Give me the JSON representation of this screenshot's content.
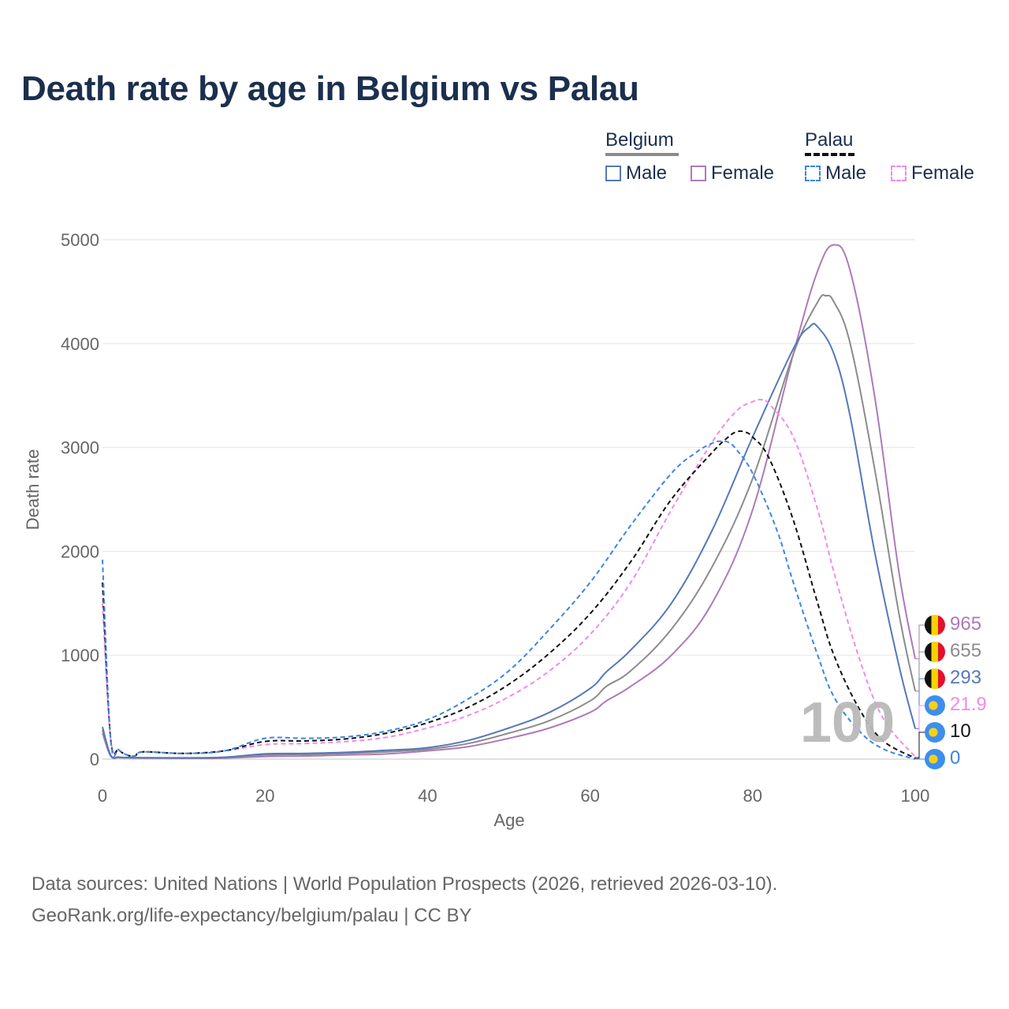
{
  "title": "Death rate by age in Belgium vs Palau",
  "legend": {
    "groups": [
      {
        "name": "Belgium",
        "items": [
          {
            "label": "Male",
            "color": "#5578b8"
          },
          {
            "label": "Female",
            "color": "#ad7ab8"
          }
        ]
      },
      {
        "name": "Palau",
        "items": [
          {
            "label": "Male",
            "color": "#3b86e6"
          },
          {
            "label": "Female",
            "color": "#f18ae8"
          }
        ]
      }
    ]
  },
  "watermark": "100",
  "sources": {
    "line1": "Data sources: United Nations | World Population Prospects (2026, retrieved 2026-03-10).",
    "line2": "GeoRank.org/life-expectancy/belgium/palau | CC BY"
  },
  "chart_data": {
    "type": "line",
    "title": "Death rate by age in Belgium vs Palau",
    "xlabel": "Age",
    "ylabel": "Death rate",
    "xlim": [
      0,
      100
    ],
    "ylim": [
      0,
      5000
    ],
    "xticks": [
      0,
      20,
      40,
      60,
      80,
      100
    ],
    "yticks": [
      0,
      1000,
      2000,
      3000,
      4000,
      5000
    ],
    "grid": true,
    "series": [
      {
        "name": "Belgium Female",
        "country": "Belgium",
        "sex": "Female",
        "color": "#ad7ab8",
        "dash": false,
        "end_label": "965",
        "x": [
          0,
          1,
          2,
          3,
          4,
          5,
          10,
          15,
          20,
          25,
          30,
          35,
          40,
          45,
          50,
          55,
          60,
          62,
          65,
          70,
          75,
          80,
          85,
          88,
          90,
          92,
          95,
          98,
          100
        ],
        "y": [
          250,
          30,
          15,
          12,
          10,
          10,
          8,
          10,
          25,
          30,
          40,
          50,
          80,
          120,
          200,
          300,
          450,
          560,
          700,
          1000,
          1500,
          2400,
          3900,
          4700,
          4950,
          4700,
          3500,
          1800,
          965
        ]
      },
      {
        "name": "Belgium Total",
        "country": "Belgium",
        "sex": "Total",
        "color": "#8c8c8c",
        "dash": false,
        "end_label": "655",
        "x": [
          0,
          1,
          2,
          3,
          4,
          5,
          10,
          15,
          20,
          25,
          30,
          35,
          40,
          45,
          50,
          55,
          60,
          62,
          65,
          70,
          75,
          80,
          85,
          88,
          89,
          90,
          92,
          95,
          98,
          100
        ],
        "y": [
          280,
          35,
          18,
          14,
          12,
          12,
          10,
          15,
          40,
          45,
          55,
          70,
          95,
          150,
          250,
          370,
          560,
          700,
          850,
          1250,
          1850,
          2700,
          3900,
          4400,
          4460,
          4400,
          4000,
          2800,
          1400,
          655
        ]
      },
      {
        "name": "Belgium Male",
        "country": "Belgium",
        "sex": "Male",
        "color": "#5578b8",
        "dash": false,
        "end_label": "293",
        "x": [
          0,
          1,
          2,
          3,
          4,
          5,
          10,
          15,
          20,
          25,
          30,
          35,
          40,
          45,
          50,
          55,
          60,
          62,
          65,
          70,
          75,
          80,
          85,
          87,
          88,
          90,
          92,
          95,
          98,
          100
        ],
        "y": [
          310,
          40,
          20,
          15,
          14,
          14,
          12,
          18,
          50,
          55,
          65,
          85,
          110,
          180,
          300,
          450,
          680,
          840,
          1050,
          1500,
          2200,
          3100,
          3950,
          4160,
          4160,
          3900,
          3300,
          2000,
          900,
          293
        ]
      },
      {
        "name": "Palau Female",
        "country": "Palau",
        "sex": "Female",
        "color": "#f18ae8",
        "dash": true,
        "end_label": "21.9",
        "x": [
          0,
          1,
          2,
          3,
          4,
          5,
          10,
          15,
          20,
          25,
          30,
          35,
          40,
          45,
          50,
          55,
          60,
          65,
          70,
          75,
          78,
          80,
          81,
          82,
          85,
          88,
          90,
          93,
          96,
          100
        ],
        "y": [
          1500,
          200,
          90,
          40,
          30,
          70,
          55,
          80,
          140,
          150,
          170,
          210,
          300,
          420,
          600,
          850,
          1200,
          1700,
          2400,
          3050,
          3350,
          3440,
          3460,
          3420,
          3100,
          2400,
          1800,
          1000,
          400,
          21.9
        ]
      },
      {
        "name": "Palau Total",
        "country": "Palau",
        "sex": "Total",
        "color": "#111111",
        "dash": true,
        "end_label": "10",
        "x": [
          0,
          1,
          2,
          3,
          4,
          5,
          10,
          15,
          20,
          25,
          30,
          35,
          40,
          45,
          50,
          55,
          60,
          65,
          70,
          75,
          77,
          78,
          79,
          80,
          82,
          85,
          88,
          90,
          93,
          96,
          100
        ],
        "y": [
          1700,
          200,
          90,
          40,
          30,
          70,
          55,
          80,
          170,
          175,
          195,
          250,
          350,
          500,
          720,
          1020,
          1400,
          1900,
          2500,
          2950,
          3100,
          3150,
          3150,
          3100,
          2900,
          2300,
          1500,
          1000,
          500,
          180,
          10
        ]
      },
      {
        "name": "Palau Male",
        "country": "Palau",
        "sex": "Male",
        "color": "#3b86e6",
        "dash": true,
        "end_label": "0",
        "x": [
          0,
          1,
          2,
          3,
          4,
          5,
          10,
          15,
          20,
          25,
          30,
          35,
          40,
          45,
          50,
          55,
          60,
          65,
          70,
          73,
          75,
          76,
          77,
          78,
          80,
          83,
          85,
          88,
          90,
          93,
          96,
          100
        ],
        "y": [
          1920,
          200,
          90,
          40,
          30,
          70,
          55,
          80,
          200,
          200,
          215,
          270,
          380,
          580,
          850,
          1250,
          1700,
          2250,
          2750,
          2950,
          3040,
          3060,
          3050,
          2980,
          2750,
          2200,
          1700,
          1000,
          600,
          280,
          100,
          0
        ]
      }
    ]
  }
}
